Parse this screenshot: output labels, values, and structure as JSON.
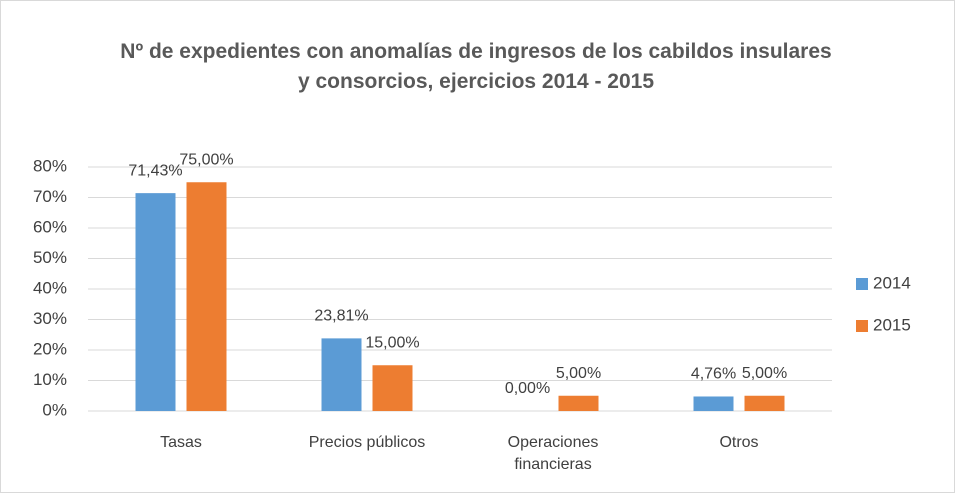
{
  "chart_data": {
    "type": "bar",
    "title": "Nº de expedientes con anomalías de ingresos de los cabildos insulares y consorcios, ejercicios 2014 - 2015",
    "categories": [
      "Tasas",
      "Precios públicos",
      "Operaciones financieras",
      "Otros"
    ],
    "series": [
      {
        "name": "2014",
        "color": "#5b9bd5",
        "values": [
          71.43,
          23.81,
          0,
          4.76
        ],
        "value_labels": [
          "71,43%",
          "23,81%",
          "0,00%",
          "4,76%"
        ]
      },
      {
        "name": "2015",
        "color": "#ed7d31",
        "values": [
          75,
          15,
          5,
          5
        ],
        "value_labels": [
          "75,00%",
          "15,00%",
          "5,00%",
          "5,00%"
        ]
      }
    ],
    "ylim": [
      0,
      80
    ],
    "yticks": [
      {
        "value": 0,
        "label": "0%"
      },
      {
        "value": 10,
        "label": "10%"
      },
      {
        "value": 20,
        "label": "20%"
      },
      {
        "value": 30,
        "label": "30%"
      },
      {
        "value": 40,
        "label": "40%"
      },
      {
        "value": 50,
        "label": "50%"
      },
      {
        "value": 60,
        "label": "60%"
      },
      {
        "value": 70,
        "label": "70%"
      },
      {
        "value": 80,
        "label": "80%"
      }
    ],
    "grid": true,
    "legend": "right"
  }
}
